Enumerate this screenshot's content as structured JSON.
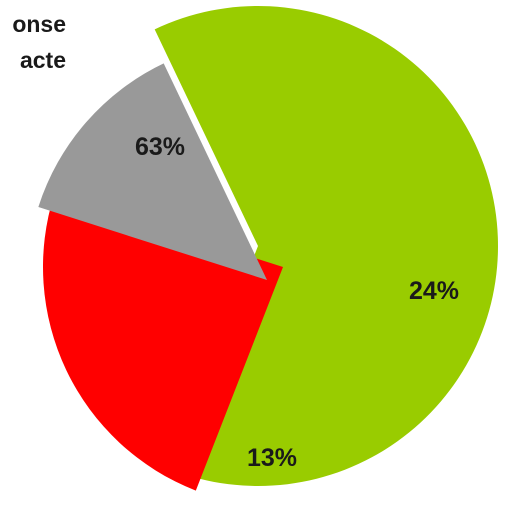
{
  "legend": {
    "line1": "onse",
    "line2": "acte"
  },
  "chart_data": {
    "type": "pie",
    "exploded": true,
    "slices": [
      {
        "label": "63%",
        "value": 63,
        "color": "#99CC00"
      },
      {
        "label": "24%",
        "value": 24,
        "color": "#FF0000"
      },
      {
        "label": "13%",
        "value": 13,
        "color": "#999999"
      }
    ]
  }
}
